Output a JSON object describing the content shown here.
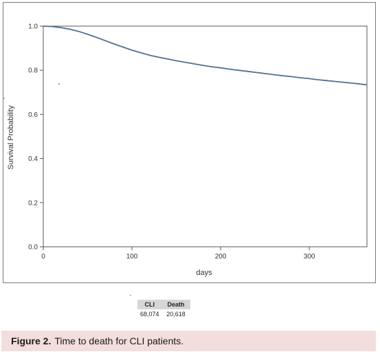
{
  "chart_data": {
    "type": "line",
    "title": "",
    "xlabel": "days",
    "ylabel": "Survival Probability",
    "xlim": [
      0,
      365
    ],
    "ylim": [
      0,
      1.0
    ],
    "x_ticks": [
      "0",
      "100",
      "200",
      "300"
    ],
    "y_ticks": [
      "0.0",
      "0.2",
      "0.4",
      "0.6",
      "0.8",
      "1.0"
    ],
    "grid": false,
    "series": [
      {
        "color": "#4f6f92",
        "x": [
          0,
          10,
          20,
          30,
          40,
          50,
          60,
          70,
          80,
          90,
          100,
          110,
          120,
          130,
          140,
          150,
          160,
          170,
          180,
          190,
          200,
          210,
          220,
          230,
          240,
          250,
          260,
          270,
          280,
          290,
          300,
          310,
          320,
          330,
          340,
          350,
          360,
          365
        ],
        "y": [
          1.0,
          0.998,
          0.993,
          0.986,
          0.976,
          0.963,
          0.949,
          0.934,
          0.919,
          0.905,
          0.891,
          0.879,
          0.868,
          0.859,
          0.851,
          0.843,
          0.836,
          0.829,
          0.822,
          0.816,
          0.811,
          0.805,
          0.8,
          0.795,
          0.79,
          0.785,
          0.78,
          0.775,
          0.771,
          0.766,
          0.762,
          0.757,
          0.753,
          0.749,
          0.745,
          0.741,
          0.736,
          0.734
        ]
      }
    ]
  },
  "summary_table": {
    "headers": [
      "CLI",
      "Death"
    ],
    "values": [
      "68,074",
      "20,618"
    ]
  },
  "caption": {
    "label": "Figure 2.",
    "text": "Time to death for CLI patients."
  }
}
